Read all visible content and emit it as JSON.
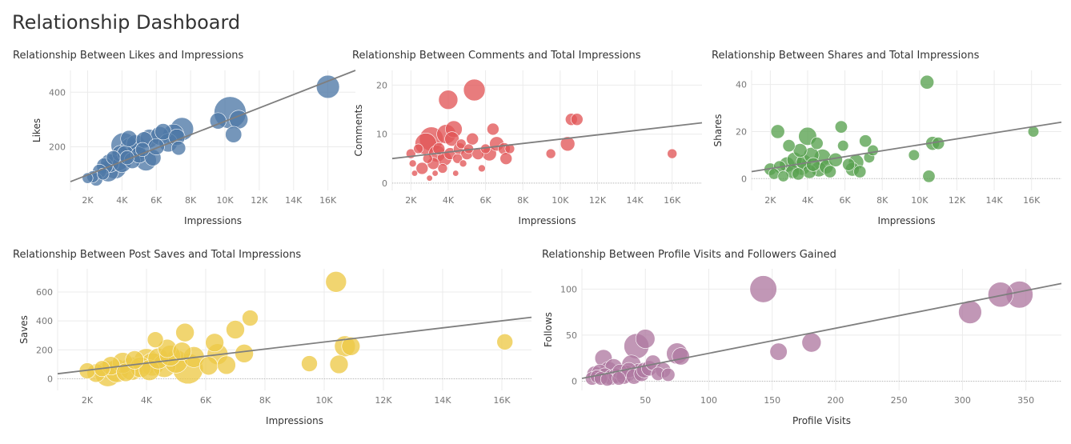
{
  "dashboard": {
    "title": "Relationship Dashboard"
  },
  "colors": {
    "blue": "#4e79a7",
    "red": "#e15759",
    "green": "#59a14f",
    "yellow": "#edc948",
    "purple": "#b07aa1",
    "trend": "#7f7f7f",
    "grid": "#ebebeb"
  },
  "chart_data": [
    {
      "type": "scatter",
      "title": "Relationship Between Likes and Impressions",
      "xlabel": "Impressions",
      "ylabel": "Likes",
      "xlim": [
        1000,
        17600
      ],
      "ylim": [
        40,
        480
      ],
      "xticks": [
        2000,
        4000,
        6000,
        8000,
        10000,
        12000,
        14000,
        16000
      ],
      "xtick_labels": [
        "2K",
        "4K",
        "6K",
        "8K",
        "10K",
        "12K",
        "14K",
        "16K"
      ],
      "yticks": [
        200,
        400
      ],
      "ytick_labels": [
        "200",
        "400"
      ],
      "zero_line": false,
      "trend": [
        [
          1000,
          72
        ],
        [
          17600,
          480
        ]
      ],
      "points": [
        [
          2000,
          85,
          0.05
        ],
        [
          2300,
          90,
          0.1
        ],
        [
          2500,
          80,
          0.15
        ],
        [
          2700,
          110,
          0.2
        ],
        [
          2900,
          100,
          0.1
        ],
        [
          3000,
          130,
          0.3
        ],
        [
          3200,
          110,
          0.5
        ],
        [
          3300,
          140,
          0.4
        ],
        [
          3500,
          160,
          0.2
        ],
        [
          3600,
          125,
          0.6
        ],
        [
          3800,
          150,
          0.5
        ],
        [
          3900,
          175,
          0.3
        ],
        [
          4000,
          140,
          0.4
        ],
        [
          4100,
          205,
          0.7
        ],
        [
          4200,
          175,
          0.3
        ],
        [
          4300,
          160,
          0.2
        ],
        [
          4400,
          230,
          0.3
        ],
        [
          4500,
          195,
          0.5
        ],
        [
          4600,
          150,
          0.3
        ],
        [
          4700,
          185,
          0.6
        ],
        [
          4800,
          210,
          0.4
        ],
        [
          5000,
          170,
          0.3
        ],
        [
          5200,
          190,
          0.2
        ],
        [
          5300,
          225,
          0.3
        ],
        [
          5400,
          150,
          0.5
        ],
        [
          5600,
          230,
          0.4
        ],
        [
          5800,
          160,
          0.3
        ],
        [
          6000,
          200,
          0.3
        ],
        [
          6200,
          240,
          0.4
        ],
        [
          6400,
          255,
          0.3
        ],
        [
          6700,
          215,
          0.4
        ],
        [
          7000,
          245,
          0.5
        ],
        [
          7200,
          235,
          0.3
        ],
        [
          7300,
          195,
          0.2
        ],
        [
          7500,
          265,
          0.6
        ],
        [
          9600,
          295,
          0.3
        ],
        [
          10300,
          325,
          1.0
        ],
        [
          10500,
          245,
          0.3
        ],
        [
          10800,
          300,
          0.4
        ],
        [
          16000,
          420,
          0.6
        ]
      ]
    },
    {
      "type": "scatter",
      "title": "Relationship Between Comments and Total Impressions",
      "xlabel": "Impressions",
      "ylabel": "Comments",
      "xlim": [
        1000,
        17600
      ],
      "ylim": [
        -1.5,
        23
      ],
      "xticks": [
        2000,
        4000,
        6000,
        8000,
        10000,
        12000,
        14000,
        16000
      ],
      "xtick_labels": [
        "2K",
        "4K",
        "6K",
        "8K",
        "10K",
        "12K",
        "14K",
        "16K"
      ],
      "yticks": [
        0,
        10,
        20
      ],
      "ytick_labels": [
        "0",
        "10",
        "20"
      ],
      "zero_line": true,
      "trend": [
        [
          1000,
          5
        ],
        [
          17600,
          12.3
        ]
      ],
      "points": [
        [
          2000,
          6,
          0.2
        ],
        [
          2100,
          4,
          0.1
        ],
        [
          2200,
          2,
          0.05
        ],
        [
          2400,
          7,
          0.2
        ],
        [
          2600,
          3,
          0.3
        ],
        [
          2800,
          8,
          0.7
        ],
        [
          2900,
          5,
          0.2
        ],
        [
          3000,
          1,
          0.05
        ],
        [
          3100,
          9,
          0.8
        ],
        [
          3200,
          4,
          0.3
        ],
        [
          3300,
          2,
          0.05
        ],
        [
          3400,
          6,
          0.5
        ],
        [
          3500,
          7,
          0.3
        ],
        [
          3700,
          3,
          0.2
        ],
        [
          3800,
          5,
          0.4
        ],
        [
          3900,
          10,
          0.6
        ],
        [
          4000,
          17,
          0.6
        ],
        [
          4100,
          6,
          0.3
        ],
        [
          4200,
          9,
          0.4
        ],
        [
          4300,
          11,
          0.5
        ],
        [
          4400,
          2,
          0.05
        ],
        [
          4500,
          5,
          0.2
        ],
        [
          4600,
          7,
          0.3
        ],
        [
          4700,
          8,
          0.2
        ],
        [
          4800,
          4,
          0.1
        ],
        [
          5000,
          6,
          0.3
        ],
        [
          5100,
          7,
          0.2
        ],
        [
          5300,
          9,
          0.3
        ],
        [
          5400,
          19,
          0.7
        ],
        [
          5600,
          6,
          0.3
        ],
        [
          5800,
          3,
          0.1
        ],
        [
          6000,
          7,
          0.2
        ],
        [
          6200,
          6,
          0.4
        ],
        [
          6400,
          11,
          0.3
        ],
        [
          6600,
          8,
          0.4
        ],
        [
          7000,
          7,
          0.3
        ],
        [
          7100,
          5,
          0.3
        ],
        [
          7300,
          7,
          0.2
        ],
        [
          9500,
          6,
          0.2
        ],
        [
          10400,
          8,
          0.4
        ],
        [
          10600,
          13,
          0.3
        ],
        [
          10900,
          13,
          0.3
        ],
        [
          16000,
          6,
          0.2
        ]
      ]
    },
    {
      "type": "scatter",
      "title": "Relationship Between Shares and Total Impressions",
      "xlabel": "Impressions",
      "ylabel": "Shares",
      "xlim": [
        1000,
        17600
      ],
      "ylim": [
        -5,
        46
      ],
      "xticks": [
        2000,
        4000,
        6000,
        8000,
        10000,
        12000,
        14000,
        16000
      ],
      "xtick_labels": [
        "2K",
        "4K",
        "6K",
        "8K",
        "10K",
        "12K",
        "14K",
        "16K"
      ],
      "yticks": [
        0,
        20,
        40
      ],
      "ytick_labels": [
        "0",
        "20",
        "40"
      ],
      "zero_line": true,
      "trend": [
        [
          1000,
          3
        ],
        [
          17600,
          24
        ]
      ],
      "points": [
        [
          2000,
          4,
          0.3
        ],
        [
          2200,
          2,
          0.2
        ],
        [
          2400,
          20,
          0.4
        ],
        [
          2500,
          5,
          0.3
        ],
        [
          2700,
          1,
          0.2
        ],
        [
          2900,
          6,
          0.5
        ],
        [
          3000,
          14,
          0.3
        ],
        [
          3200,
          3,
          0.4
        ],
        [
          3300,
          8,
          0.5
        ],
        [
          3500,
          2,
          0.3
        ],
        [
          3600,
          12,
          0.4
        ],
        [
          3700,
          5,
          0.6
        ],
        [
          3800,
          7,
          0.5
        ],
        [
          4000,
          18,
          0.7
        ],
        [
          4100,
          3,
          0.4
        ],
        [
          4200,
          10,
          0.5
        ],
        [
          4300,
          6,
          0.4
        ],
        [
          4500,
          15,
          0.3
        ],
        [
          4600,
          4,
          0.5
        ],
        [
          4800,
          9,
          0.6
        ],
        [
          5000,
          5,
          0.4
        ],
        [
          5200,
          3,
          0.3
        ],
        [
          5500,
          8,
          0.4
        ],
        [
          5800,
          22,
          0.3
        ],
        [
          5900,
          14,
          0.2
        ],
        [
          6200,
          6,
          0.3
        ],
        [
          6400,
          4,
          0.4
        ],
        [
          6600,
          7,
          0.5
        ],
        [
          6800,
          3,
          0.3
        ],
        [
          7100,
          16,
          0.3
        ],
        [
          7300,
          9,
          0.2
        ],
        [
          7500,
          12,
          0.2
        ],
        [
          9700,
          10,
          0.2
        ],
        [
          10400,
          41,
          0.4
        ],
        [
          10500,
          1,
          0.3
        ],
        [
          10700,
          15,
          0.4
        ],
        [
          11000,
          15,
          0.3
        ],
        [
          16100,
          20,
          0.2
        ]
      ]
    },
    {
      "type": "scatter",
      "title": "Relationship Between Post Saves and Total Impressions",
      "xlabel": "Impressions",
      "ylabel": "Saves",
      "xlim": [
        1000,
        17000
      ],
      "ylim": [
        -80,
        760
      ],
      "xticks": [
        2000,
        4000,
        6000,
        8000,
        10000,
        12000,
        14000,
        16000
      ],
      "xtick_labels": [
        "2K",
        "4K",
        "6K",
        "8K",
        "10K",
        "12K",
        "14K",
        "16K"
      ],
      "yticks": [
        0,
        200,
        400,
        600
      ],
      "ytick_labels": [
        "0",
        "200",
        "400",
        "600"
      ],
      "zero_line": true,
      "trend": [
        [
          1000,
          35
        ],
        [
          17000,
          425
        ]
      ],
      "points": [
        [
          2000,
          55,
          0.2
        ],
        [
          2300,
          40,
          0.3
        ],
        [
          2500,
          70,
          0.2
        ],
        [
          2700,
          35,
          0.6
        ],
        [
          2800,
          90,
          0.3
        ],
        [
          3000,
          55,
          0.5
        ],
        [
          3200,
          110,
          0.4
        ],
        [
          3300,
          45,
          0.3
        ],
        [
          3500,
          70,
          0.5
        ],
        [
          3600,
          130,
          0.3
        ],
        [
          3800,
          80,
          0.4
        ],
        [
          4000,
          120,
          0.6
        ],
        [
          4100,
          60,
          0.4
        ],
        [
          4200,
          100,
          0.5
        ],
        [
          4300,
          270,
          0.2
        ],
        [
          4400,
          140,
          0.4
        ],
        [
          4600,
          90,
          0.5
        ],
        [
          4700,
          210,
          0.3
        ],
        [
          4800,
          160,
          0.4
        ],
        [
          5000,
          120,
          0.5
        ],
        [
          5200,
          190,
          0.3
        ],
        [
          5300,
          320,
          0.3
        ],
        [
          5400,
          70,
          0.8
        ],
        [
          5600,
          150,
          0.4
        ],
        [
          6100,
          90,
          0.3
        ],
        [
          6300,
          250,
          0.3
        ],
        [
          6400,
          170,
          0.4
        ],
        [
          6700,
          95,
          0.3
        ],
        [
          7000,
          340,
          0.3
        ],
        [
          7300,
          175,
          0.3
        ],
        [
          7500,
          420,
          0.2
        ],
        [
          9500,
          105,
          0.2
        ],
        [
          10400,
          670,
          0.4
        ],
        [
          10500,
          100,
          0.3
        ],
        [
          10700,
          225,
          0.4
        ],
        [
          10900,
          225,
          0.3
        ],
        [
          16100,
          255,
          0.2
        ]
      ]
    },
    {
      "type": "scatter",
      "title": "Relationship Between Profile Visits and Followers Gained",
      "xlabel": "Profile Visits",
      "ylabel": "Follows",
      "xlim": [
        0,
        378
      ],
      "ylim": [
        -10,
        122
      ],
      "xticks": [
        50,
        100,
        150,
        200,
        250,
        300,
        350
      ],
      "xtick_labels": [
        "50",
        "100",
        "150",
        "200",
        "250",
        "300",
        "350"
      ],
      "yticks": [
        0,
        50,
        100
      ],
      "ytick_labels": [
        "0",
        "50",
        "100"
      ],
      "zero_line": true,
      "trend": [
        [
          0,
          3
        ],
        [
          378,
          106
        ]
      ],
      "points": [
        [
          8,
          3,
          0.2
        ],
        [
          10,
          8,
          0.3
        ],
        [
          12,
          5,
          0.2
        ],
        [
          14,
          10,
          0.3
        ],
        [
          15,
          3,
          0.2
        ],
        [
          17,
          25,
          0.4
        ],
        [
          18,
          6,
          0.3
        ],
        [
          20,
          2,
          0.2
        ],
        [
          21,
          12,
          0.4
        ],
        [
          23,
          4,
          0.3
        ],
        [
          25,
          15,
          0.4
        ],
        [
          27,
          6,
          0.3
        ],
        [
          29,
          3,
          0.2
        ],
        [
          30,
          10,
          0.3
        ],
        [
          33,
          5,
          0.3
        ],
        [
          35,
          8,
          0.4
        ],
        [
          37,
          12,
          0.3
        ],
        [
          39,
          18,
          0.5
        ],
        [
          41,
          5,
          0.3
        ],
        [
          43,
          38,
          0.8
        ],
        [
          45,
          10,
          0.4
        ],
        [
          47,
          8,
          0.3
        ],
        [
          49,
          12,
          0.3
        ],
        [
          50,
          46,
          0.5
        ],
        [
          53,
          14,
          0.3
        ],
        [
          56,
          20,
          0.3
        ],
        [
          60,
          8,
          0.2
        ],
        [
          64,
          12,
          0.3
        ],
        [
          68,
          7,
          0.2
        ],
        [
          75,
          30,
          0.6
        ],
        [
          78,
          27,
          0.4
        ],
        [
          143,
          100,
          0.9
        ],
        [
          155,
          32,
          0.4
        ],
        [
          181,
          42,
          0.5
        ],
        [
          306,
          75,
          0.7
        ],
        [
          330,
          94,
          0.8
        ],
        [
          345,
          94,
          0.9
        ]
      ]
    }
  ]
}
